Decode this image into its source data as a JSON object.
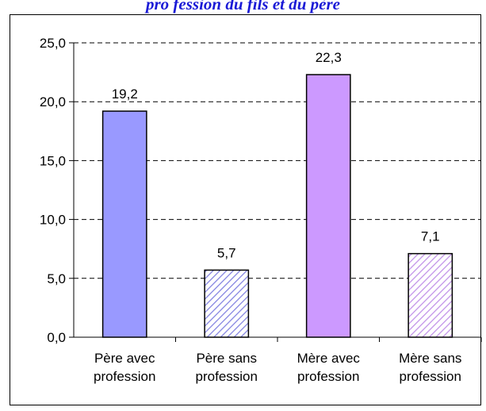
{
  "chart_data": {
    "type": "bar",
    "title": "pro   fession   du   fils et   du   père",
    "categories": [
      [
        "Père avec",
        "profession"
      ],
      [
        "Père sans",
        "profession"
      ],
      [
        "Mère avec",
        "profession"
      ],
      [
        "Mère sans",
        "profession"
      ]
    ],
    "values": [
      19.2,
      5.7,
      22.3,
      7.1
    ],
    "value_labels": [
      "19,2",
      "5,7",
      "22,3",
      "7,1"
    ],
    "ylim": [
      0,
      25
    ],
    "yticks": [
      0,
      5,
      10,
      15,
      20,
      25
    ],
    "ytick_labels": [
      "0,0",
      "5,0",
      "10,0",
      "15,0",
      "20,0",
      "25,0"
    ],
    "xlabel": "",
    "ylabel": "",
    "grid": true,
    "bar_styles": [
      {
        "fill": "#9999ff",
        "pattern": "solid"
      },
      {
        "fill": "#9999ff",
        "pattern": "hatch"
      },
      {
        "fill": "#cc99ff",
        "pattern": "solid"
      },
      {
        "fill": "#cc99ff",
        "pattern": "hatch"
      }
    ]
  }
}
